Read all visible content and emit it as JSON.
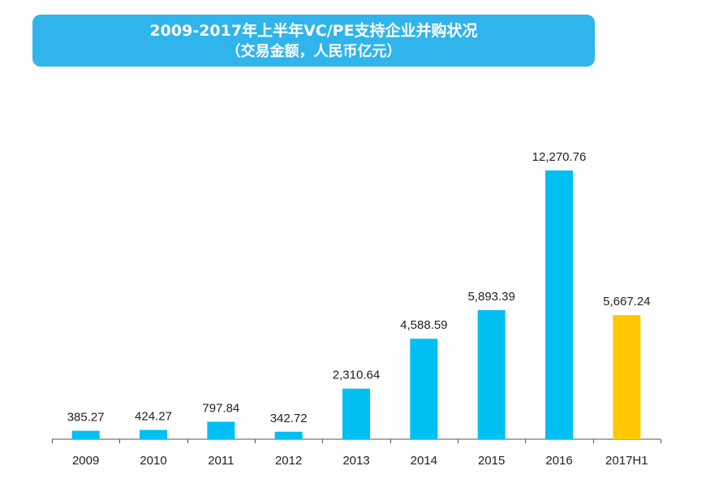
{
  "chart_data": {
    "type": "bar",
    "title": "2009-2017年上半年VC/PE支持企业并购状况",
    "subtitle": "（交易金额，人民币亿元）",
    "categories": [
      "2009",
      "2010",
      "2011",
      "2012",
      "2013",
      "2014",
      "2015",
      "2016",
      "2017H1"
    ],
    "values": [
      385.27,
      424.27,
      797.84,
      342.72,
      2310.64,
      4588.59,
      5893.39,
      12270.76,
      5667.24
    ],
    "value_labels": [
      "385.27",
      "424.27",
      "797.84",
      "342.72",
      "2,310.64",
      "4,588.59",
      "5,893.39",
      "12,270.76",
      "5,667.24"
    ],
    "highlight_index": 8,
    "xlabel": "",
    "ylabel": "",
    "ylim": [
      0,
      13000
    ],
    "grid": false,
    "colors": {
      "bar": "#00bff3",
      "highlight": "#ffc800",
      "axis": "#555555",
      "title_bg": "#30b4ec"
    }
  }
}
